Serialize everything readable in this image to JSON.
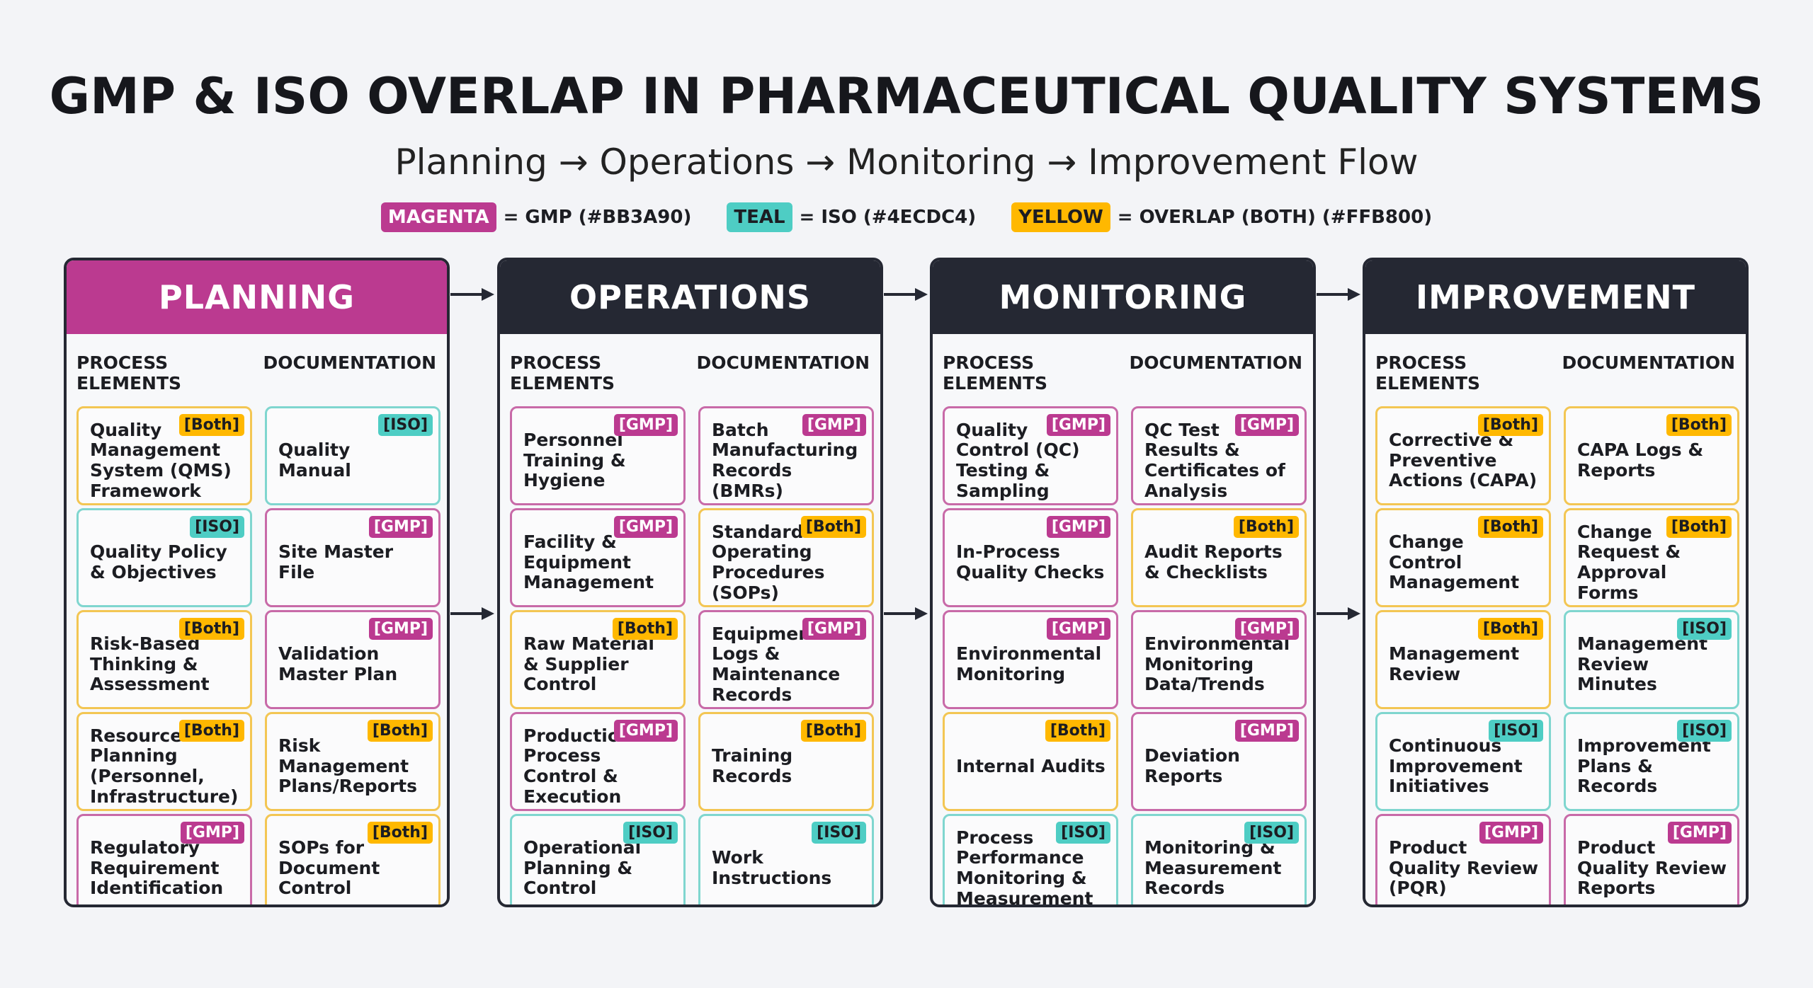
{
  "title": "GMP & ISO OVERLAP IN PHARMACEUTICAL QUALITY SYSTEMS",
  "subtitle": "Planning → Operations → Monitoring → Improvement Flow",
  "colors": {
    "GMP": "#BB3A90",
    "ISO": "#4ECDC4",
    "Both": "#FFB800",
    "dark": "#252833"
  },
  "legend": [
    {
      "swatch": "MAGENTA",
      "text": "= GMP (#BB3A90)",
      "type": "GMP"
    },
    {
      "swatch": "TEAL",
      "text": "= ISO (#4ECDC4)",
      "type": "ISO"
    },
    {
      "swatch": "YELLOW",
      "text": "= OVERLAP (BOTH) (#FFB800)",
      "type": "Both"
    }
  ],
  "column_headers": {
    "process": "PROCESS ELEMENTS",
    "documentation": "DOCUMENTATION"
  },
  "tag_labels": {
    "GMP": "[GMP]",
    "ISO": "[ISO]",
    "Both": "[Both]"
  },
  "panels": [
    {
      "name": "PLANNING",
      "header_color": "#BB3A90",
      "rows": [
        [
          {
            "text": "Quality Management System (QMS) Framework",
            "tag": "Both"
          },
          {
            "text": "Quality Manual",
            "tag": "ISO"
          }
        ],
        [
          {
            "text": "Quality Policy & Objectives",
            "tag": "ISO"
          },
          {
            "text": "Site Master File",
            "tag": "GMP"
          }
        ],
        [
          {
            "text": "Risk-Based Thinking & Assessment",
            "tag": "Both"
          },
          {
            "text": "Validation Master Plan",
            "tag": "GMP"
          }
        ],
        [
          {
            "text": "Resource Planning (Personnel, Infrastructure)",
            "tag": "Both"
          },
          {
            "text": "Risk Management Plans/Reports",
            "tag": "Both"
          }
        ],
        [
          {
            "text": "Regulatory Requirement Identification",
            "tag": "GMP"
          },
          {
            "text": "SOPs for Document Control",
            "tag": "Both"
          }
        ]
      ]
    },
    {
      "name": "OPERATIONS",
      "header_color": "#252833",
      "rows": [
        [
          {
            "text": "Personnel Training & Hygiene",
            "tag": "GMP"
          },
          {
            "text": "Batch Manufacturing Records (BMRs)",
            "tag": "GMP"
          }
        ],
        [
          {
            "text": "Facility & Equipment Management",
            "tag": "GMP"
          },
          {
            "text": "Standard Operating Procedures (SOPs)",
            "tag": "Both"
          }
        ],
        [
          {
            "text": "Raw Material & Supplier Control",
            "tag": "Both"
          },
          {
            "text": "Equipment Logs & Maintenance Records",
            "tag": "GMP"
          }
        ],
        [
          {
            "text": "Production Process Control & Execution",
            "tag": "GMP"
          },
          {
            "text": "Training Records",
            "tag": "Both"
          }
        ],
        [
          {
            "text": "Operational Planning & Control",
            "tag": "ISO"
          },
          {
            "text": "Work Instructions",
            "tag": "ISO"
          }
        ]
      ]
    },
    {
      "name": "MONITORING",
      "header_color": "#252833",
      "rows": [
        [
          {
            "text": "Quality Control (QC) Testing & Sampling",
            "tag": "GMP"
          },
          {
            "text": "QC Test Results & Certificates of Analysis",
            "tag": "GMP"
          }
        ],
        [
          {
            "text": "In-Process Quality Checks",
            "tag": "GMP"
          },
          {
            "text": "Audit Reports & Checklists",
            "tag": "Both"
          }
        ],
        [
          {
            "text": "Environmental Monitoring",
            "tag": "GMP"
          },
          {
            "text": "Environmental Monitoring Data/Trends",
            "tag": "GMP"
          }
        ],
        [
          {
            "text": "Internal Audits",
            "tag": "Both"
          },
          {
            "text": "Deviation Reports",
            "tag": "GMP"
          }
        ],
        [
          {
            "text": "Process Performance Monitoring & Measurement",
            "tag": "ISO"
          },
          {
            "text": "Monitoring & Measurement Records",
            "tag": "ISO"
          }
        ]
      ]
    },
    {
      "name": "IMPROVEMENT",
      "header_color": "#252833",
      "rows": [
        [
          {
            "text": "Corrective & Preventive Actions (CAPA)",
            "tag": "Both"
          },
          {
            "text": "CAPA Logs & Reports",
            "tag": "Both"
          }
        ],
        [
          {
            "text": "Change Control Management",
            "tag": "Both"
          },
          {
            "text": "Change Request & Approval Forms",
            "tag": "Both"
          }
        ],
        [
          {
            "text": "Management Review",
            "tag": "Both"
          },
          {
            "text": "Management Review Minutes",
            "tag": "ISO"
          }
        ],
        [
          {
            "text": "Continuous Improvement Initiatives",
            "tag": "ISO"
          },
          {
            "text": "Improvement Plans & Records",
            "tag": "ISO"
          }
        ],
        [
          {
            "text": "Product Quality Review (PQR)",
            "tag": "GMP"
          },
          {
            "text": "Product Quality Review Reports",
            "tag": "GMP"
          }
        ]
      ]
    }
  ]
}
